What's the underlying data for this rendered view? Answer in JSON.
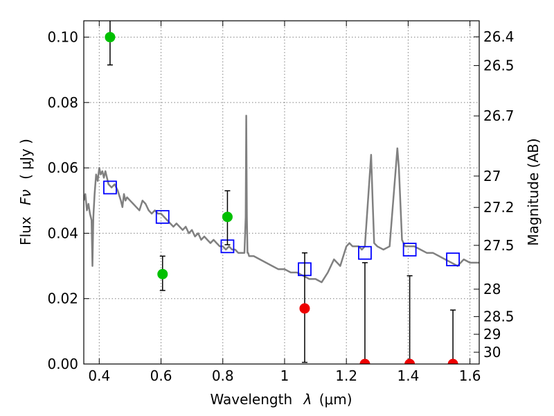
{
  "chart_data": {
    "type": "scatter",
    "xlabel_prefix": "Wavelength",
    "xlabel_symbol": "λ",
    "xlabel_unit": "(μm)",
    "ylabel_prefix": "Flux",
    "ylabel_symbol": "Fν",
    "ylabel_unit": "( μJy )",
    "ylabel_right": "Magnitude (AB)",
    "xlim": [
      0.35,
      1.63
    ],
    "ylim": [
      0.0,
      0.105
    ],
    "grid": true,
    "xticks": [
      {
        "value": 0.4,
        "label": "0.4"
      },
      {
        "value": 0.6,
        "label": "0.6"
      },
      {
        "value": 0.8,
        "label": "0.8"
      },
      {
        "value": 1.0,
        "label": "1"
      },
      {
        "value": 1.2,
        "label": "1.2"
      },
      {
        "value": 1.4,
        "label": "1.4"
      },
      {
        "value": 1.6,
        "label": "1.6"
      }
    ],
    "yticks": [
      {
        "value": 0.0,
        "label": "0.00"
      },
      {
        "value": 0.02,
        "label": "0.02"
      },
      {
        "value": 0.04,
        "label": "0.04"
      },
      {
        "value": 0.06,
        "label": "0.06"
      },
      {
        "value": 0.08,
        "label": "0.08"
      },
      {
        "value": 0.1,
        "label": "0.10"
      }
    ],
    "right_ticks": [
      {
        "label": "26.4",
        "flux": 0.1001
      },
      {
        "label": "26.5",
        "flux": 0.0913
      },
      {
        "label": "26.7",
        "flux": 0.0759
      },
      {
        "label": "27",
        "flux": 0.0575
      },
      {
        "label": "27.2",
        "flux": 0.0479
      },
      {
        "label": "27.5",
        "flux": 0.0363
      },
      {
        "label": "28",
        "flux": 0.0229
      },
      {
        "label": "28.5",
        "flux": 0.0145
      },
      {
        "label": "29",
        "flux": 0.0091
      },
      {
        "label": "30",
        "flux": 0.0036
      }
    ],
    "series": [
      {
        "kind": "model",
        "color": "#808080",
        "x": [
          0.35,
          0.355,
          0.36,
          0.365,
          0.37,
          0.375,
          0.378,
          0.381,
          0.385,
          0.39,
          0.395,
          0.4,
          0.405,
          0.41,
          0.415,
          0.42,
          0.43,
          0.44,
          0.45,
          0.46,
          0.47,
          0.475,
          0.48,
          0.485,
          0.49,
          0.5,
          0.51,
          0.52,
          0.53,
          0.54,
          0.55,
          0.56,
          0.57,
          0.58,
          0.59,
          0.6,
          0.61,
          0.62,
          0.63,
          0.64,
          0.65,
          0.66,
          0.67,
          0.68,
          0.69,
          0.7,
          0.71,
          0.72,
          0.73,
          0.74,
          0.75,
          0.76,
          0.77,
          0.78,
          0.79,
          0.8,
          0.81,
          0.82,
          0.83,
          0.84,
          0.85,
          0.86,
          0.87,
          0.874,
          0.876,
          0.878,
          0.88,
          0.882,
          0.885,
          0.89,
          0.9,
          0.92,
          0.94,
          0.96,
          0.98,
          1.0,
          1.02,
          1.04,
          1.06,
          1.08,
          1.1,
          1.12,
          1.14,
          1.16,
          1.18,
          1.2,
          1.21,
          1.22,
          1.24,
          1.25,
          1.26,
          1.27,
          1.28,
          1.285,
          1.29,
          1.3,
          1.32,
          1.34,
          1.36,
          1.365,
          1.37,
          1.38,
          1.39,
          1.4,
          1.42,
          1.44,
          1.46,
          1.48,
          1.5,
          1.52,
          1.54,
          1.56,
          1.58,
          1.6,
          1.63
        ],
        "y": [
          0.05,
          0.052,
          0.047,
          0.049,
          0.046,
          0.044,
          0.03,
          0.045,
          0.052,
          0.058,
          0.056,
          0.06,
          0.058,
          0.059,
          0.057,
          0.059,
          0.055,
          0.054,
          0.055,
          0.053,
          0.05,
          0.048,
          0.052,
          0.05,
          0.051,
          0.05,
          0.049,
          0.048,
          0.047,
          0.05,
          0.049,
          0.047,
          0.046,
          0.047,
          0.046,
          0.046,
          0.045,
          0.044,
          0.043,
          0.042,
          0.043,
          0.042,
          0.041,
          0.042,
          0.04,
          0.041,
          0.039,
          0.04,
          0.038,
          0.039,
          0.038,
          0.037,
          0.038,
          0.037,
          0.036,
          0.036,
          0.035,
          0.036,
          0.035,
          0.035,
          0.034,
          0.034,
          0.034,
          0.045,
          0.076,
          0.045,
          0.034,
          0.034,
          0.033,
          0.033,
          0.033,
          0.032,
          0.031,
          0.03,
          0.029,
          0.029,
          0.028,
          0.028,
          0.027,
          0.026,
          0.026,
          0.025,
          0.028,
          0.032,
          0.03,
          0.036,
          0.037,
          0.036,
          0.036,
          0.035,
          0.036,
          0.05,
          0.064,
          0.05,
          0.037,
          0.036,
          0.035,
          0.036,
          0.06,
          0.066,
          0.06,
          0.038,
          0.036,
          0.036,
          0.036,
          0.035,
          0.034,
          0.034,
          0.033,
          0.032,
          0.031,
          0.03,
          0.032,
          0.031,
          0.031
        ]
      },
      {
        "kind": "model_photometry",
        "marker": "square",
        "color": "#0000ff",
        "x": [
          0.435,
          0.605,
          0.815,
          1.065,
          1.26,
          1.405,
          1.545
        ],
        "y": [
          0.054,
          0.045,
          0.036,
          0.029,
          0.034,
          0.035,
          0.032
        ]
      },
      {
        "kind": "detections",
        "marker": "circle",
        "color": "#00c000",
        "x": [
          0.435,
          0.605,
          0.815
        ],
        "y": [
          0.1,
          0.0275,
          0.045
        ],
        "err_low": [
          0.0915,
          0.0225,
          0.0365
        ],
        "err_high": [
          0.107,
          0.033,
          0.053
        ]
      },
      {
        "kind": "upper_limits",
        "marker": "circle",
        "color": "#ee0000",
        "x": [
          1.065,
          1.26,
          1.405,
          1.545
        ],
        "y": [
          0.017,
          0.0,
          0.0,
          0.0
        ],
        "err_low": [
          0.0005,
          0.0,
          0.0,
          0.0
        ],
        "err_high": [
          0.034,
          0.031,
          0.027,
          0.0165
        ]
      }
    ]
  }
}
